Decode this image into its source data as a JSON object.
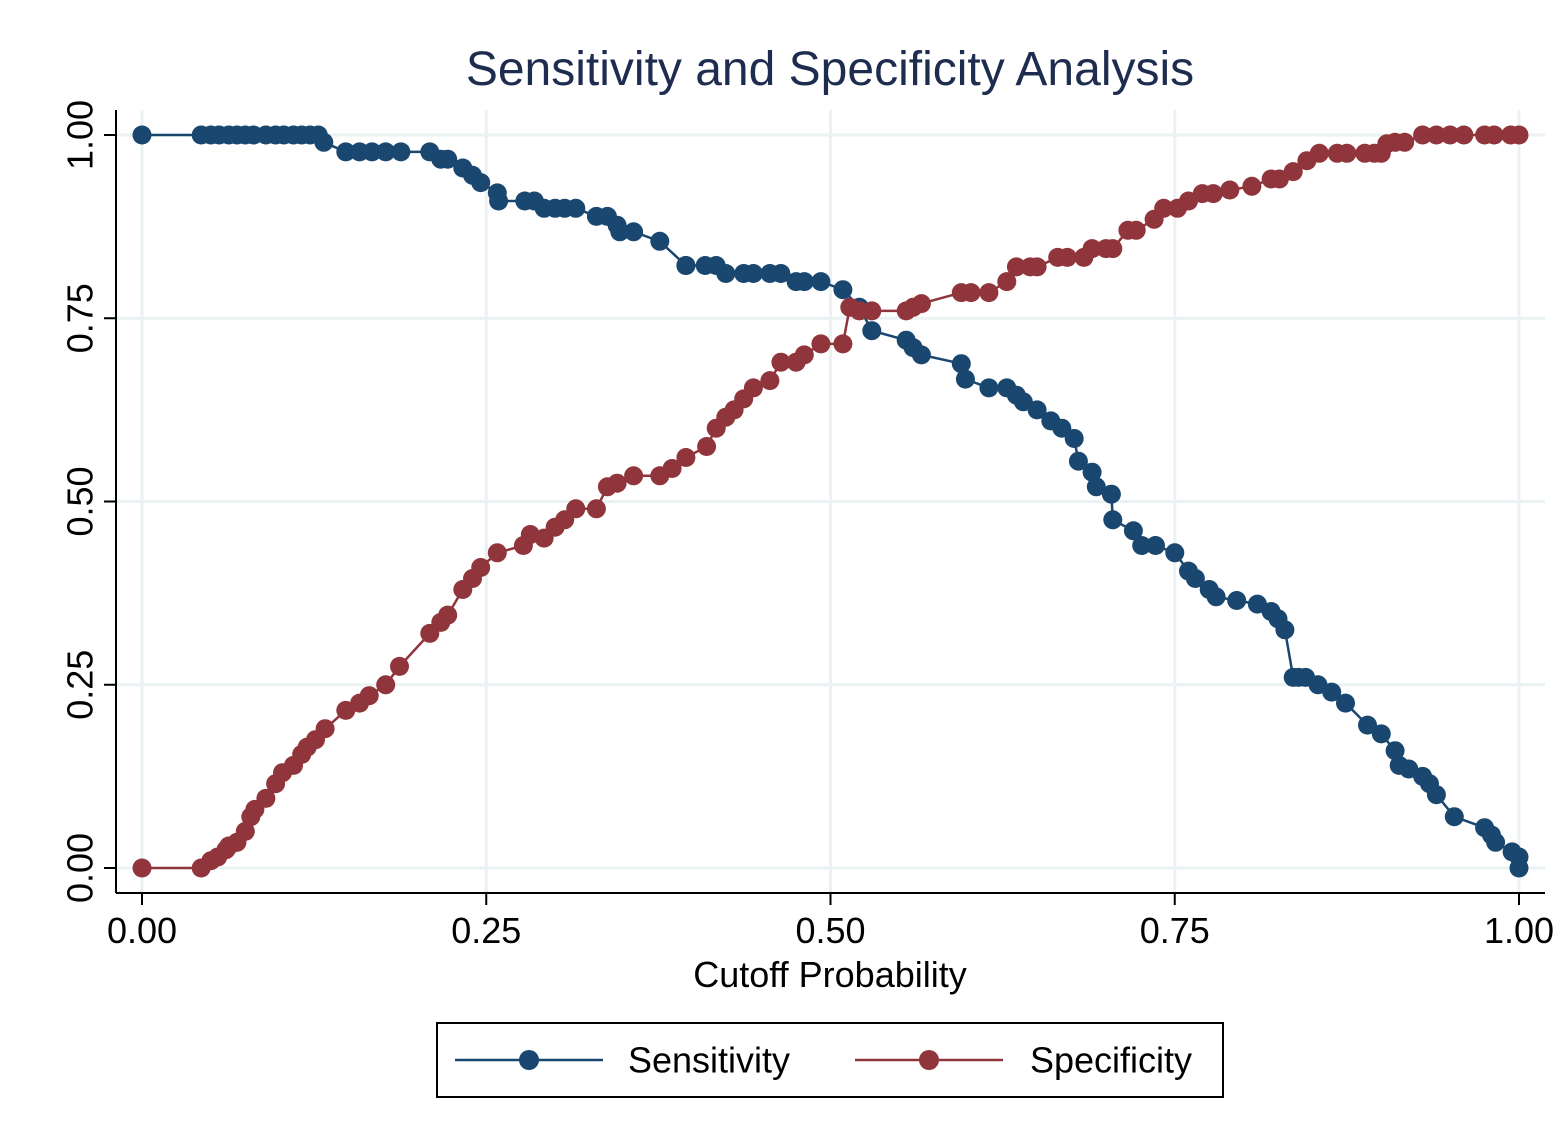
{
  "chart_data": {
    "type": "line",
    "title": "Sensitivity and Specificity Analysis",
    "xlabel": "Cutoff Probability",
    "ylabel": "",
    "xlim": [
      0,
      1
    ],
    "ylim": [
      0,
      1
    ],
    "xticks": [
      "0.00",
      "0.25",
      "0.50",
      "0.75",
      "1.00"
    ],
    "yticks": [
      "0.00",
      "0.25",
      "0.50",
      "0.75",
      "1.00"
    ],
    "grid": true,
    "legend": "bottom",
    "series": [
      {
        "name": "Sensitivity",
        "color": "#1a476f",
        "points": [
          [
            0.0,
            1.0
          ],
          [
            0.043,
            1.0
          ],
          [
            0.05,
            1.0
          ],
          [
            0.056,
            1.0
          ],
          [
            0.063,
            1.0
          ],
          [
            0.069,
            1.0
          ],
          [
            0.075,
            1.0
          ],
          [
            0.081,
            1.0
          ],
          [
            0.09,
            1.0
          ],
          [
            0.097,
            1.0
          ],
          [
            0.103,
            1.0
          ],
          [
            0.11,
            1.0
          ],
          [
            0.116,
            1.0
          ],
          [
            0.122,
            1.0
          ],
          [
            0.128,
            1.0
          ],
          [
            0.132,
            0.99
          ],
          [
            0.148,
            0.977
          ],
          [
            0.158,
            0.977
          ],
          [
            0.167,
            0.977
          ],
          [
            0.177,
            0.977
          ],
          [
            0.188,
            0.977
          ],
          [
            0.209,
            0.977
          ],
          [
            0.217,
            0.967
          ],
          [
            0.222,
            0.967
          ],
          [
            0.233,
            0.955
          ],
          [
            0.24,
            0.945
          ],
          [
            0.246,
            0.935
          ],
          [
            0.258,
            0.921
          ],
          [
            0.259,
            0.91
          ],
          [
            0.278,
            0.91
          ],
          [
            0.285,
            0.91
          ],
          [
            0.292,
            0.9
          ],
          [
            0.3,
            0.9
          ],
          [
            0.307,
            0.9
          ],
          [
            0.315,
            0.9
          ],
          [
            0.33,
            0.889
          ],
          [
            0.338,
            0.889
          ],
          [
            0.345,
            0.877
          ],
          [
            0.347,
            0.868
          ],
          [
            0.357,
            0.868
          ],
          [
            0.376,
            0.855
          ],
          [
            0.395,
            0.822
          ],
          [
            0.395,
            0.822
          ],
          [
            0.409,
            0.822
          ],
          [
            0.417,
            0.822
          ],
          [
            0.424,
            0.811
          ],
          [
            0.437,
            0.811
          ],
          [
            0.444,
            0.811
          ],
          [
            0.456,
            0.811
          ],
          [
            0.464,
            0.811
          ],
          [
            0.475,
            0.8
          ],
          [
            0.481,
            0.8
          ],
          [
            0.493,
            0.8
          ],
          [
            0.509,
            0.789
          ],
          [
            0.521,
            0.765
          ],
          [
            0.53,
            0.733
          ],
          [
            0.555,
            0.72
          ],
          [
            0.56,
            0.71
          ],
          [
            0.566,
            0.7
          ],
          [
            0.595,
            0.688
          ],
          [
            0.598,
            0.667
          ],
          [
            0.615,
            0.655
          ],
          [
            0.628,
            0.655
          ],
          [
            0.635,
            0.645
          ],
          [
            0.64,
            0.636
          ],
          [
            0.65,
            0.625
          ],
          [
            0.66,
            0.61
          ],
          [
            0.668,
            0.6
          ],
          [
            0.677,
            0.586
          ],
          [
            0.68,
            0.555
          ],
          [
            0.69,
            0.54
          ],
          [
            0.693,
            0.52
          ],
          [
            0.704,
            0.51
          ],
          [
            0.705,
            0.475
          ],
          [
            0.72,
            0.46
          ],
          [
            0.726,
            0.44
          ],
          [
            0.736,
            0.44
          ],
          [
            0.75,
            0.43
          ],
          [
            0.76,
            0.405
          ],
          [
            0.765,
            0.395
          ],
          [
            0.775,
            0.38
          ],
          [
            0.78,
            0.37
          ],
          [
            0.795,
            0.365
          ],
          [
            0.81,
            0.36
          ],
          [
            0.82,
            0.35
          ],
          [
            0.825,
            0.34
          ],
          [
            0.83,
            0.325
          ],
          [
            0.836,
            0.26
          ],
          [
            0.84,
            0.26
          ],
          [
            0.845,
            0.26
          ],
          [
            0.854,
            0.25
          ],
          [
            0.864,
            0.24
          ],
          [
            0.874,
            0.225
          ],
          [
            0.89,
            0.195
          ],
          [
            0.9,
            0.183
          ],
          [
            0.91,
            0.16
          ],
          [
            0.913,
            0.14
          ],
          [
            0.92,
            0.135
          ],
          [
            0.93,
            0.125
          ],
          [
            0.935,
            0.115
          ],
          [
            0.94,
            0.1
          ],
          [
            0.953,
            0.07
          ],
          [
            0.975,
            0.055
          ],
          [
            0.98,
            0.045
          ],
          [
            0.983,
            0.035
          ],
          [
            0.995,
            0.022
          ],
          [
            1.0,
            0.015
          ],
          [
            1.0,
            0.0
          ]
        ]
      },
      {
        "name": "Specificity",
        "color": "#90353b",
        "points": [
          [
            0.0,
            0.0
          ],
          [
            0.043,
            0.0
          ],
          [
            0.05,
            0.01
          ],
          [
            0.055,
            0.015
          ],
          [
            0.061,
            0.025
          ],
          [
            0.063,
            0.03
          ],
          [
            0.069,
            0.035
          ],
          [
            0.075,
            0.05
          ],
          [
            0.079,
            0.07
          ],
          [
            0.082,
            0.08
          ],
          [
            0.09,
            0.095
          ],
          [
            0.097,
            0.115
          ],
          [
            0.102,
            0.13
          ],
          [
            0.11,
            0.14
          ],
          [
            0.116,
            0.155
          ],
          [
            0.12,
            0.165
          ],
          [
            0.126,
            0.175
          ],
          [
            0.133,
            0.19
          ],
          [
            0.148,
            0.215
          ],
          [
            0.158,
            0.225
          ],
          [
            0.165,
            0.235
          ],
          [
            0.177,
            0.25
          ],
          [
            0.187,
            0.275
          ],
          [
            0.209,
            0.32
          ],
          [
            0.217,
            0.335
          ],
          [
            0.222,
            0.345
          ],
          [
            0.233,
            0.38
          ],
          [
            0.24,
            0.395
          ],
          [
            0.246,
            0.41
          ],
          [
            0.258,
            0.43
          ],
          [
            0.277,
            0.44
          ],
          [
            0.282,
            0.455
          ],
          [
            0.292,
            0.45
          ],
          [
            0.3,
            0.465
          ],
          [
            0.307,
            0.475
          ],
          [
            0.315,
            0.49
          ],
          [
            0.33,
            0.49
          ],
          [
            0.338,
            0.52
          ],
          [
            0.345,
            0.525
          ],
          [
            0.357,
            0.535
          ],
          [
            0.376,
            0.535
          ],
          [
            0.385,
            0.545
          ],
          [
            0.395,
            0.56
          ],
          [
            0.41,
            0.575
          ],
          [
            0.417,
            0.6
          ],
          [
            0.424,
            0.615
          ],
          [
            0.43,
            0.625
          ],
          [
            0.437,
            0.64
          ],
          [
            0.444,
            0.655
          ],
          [
            0.456,
            0.665
          ],
          [
            0.464,
            0.69
          ],
          [
            0.475,
            0.69
          ],
          [
            0.481,
            0.7
          ],
          [
            0.493,
            0.715
          ],
          [
            0.509,
            0.715
          ],
          [
            0.514,
            0.765
          ],
          [
            0.521,
            0.76
          ],
          [
            0.53,
            0.76
          ],
          [
            0.555,
            0.76
          ],
          [
            0.56,
            0.765
          ],
          [
            0.566,
            0.77
          ],
          [
            0.595,
            0.785
          ],
          [
            0.602,
            0.785
          ],
          [
            0.615,
            0.785
          ],
          [
            0.628,
            0.8
          ],
          [
            0.635,
            0.82
          ],
          [
            0.645,
            0.82
          ],
          [
            0.65,
            0.82
          ],
          [
            0.665,
            0.833
          ],
          [
            0.672,
            0.833
          ],
          [
            0.684,
            0.833
          ],
          [
            0.69,
            0.845
          ],
          [
            0.7,
            0.845
          ],
          [
            0.705,
            0.845
          ],
          [
            0.716,
            0.87
          ],
          [
            0.722,
            0.87
          ],
          [
            0.735,
            0.885
          ],
          [
            0.742,
            0.9
          ],
          [
            0.752,
            0.9
          ],
          [
            0.76,
            0.91
          ],
          [
            0.77,
            0.92
          ],
          [
            0.778,
            0.92
          ],
          [
            0.79,
            0.925
          ],
          [
            0.806,
            0.93
          ],
          [
            0.82,
            0.94
          ],
          [
            0.826,
            0.94
          ],
          [
            0.836,
            0.95
          ],
          [
            0.846,
            0.965
          ],
          [
            0.855,
            0.975
          ],
          [
            0.868,
            0.975
          ],
          [
            0.875,
            0.975
          ],
          [
            0.888,
            0.975
          ],
          [
            0.895,
            0.975
          ],
          [
            0.9,
            0.975
          ],
          [
            0.904,
            0.988
          ],
          [
            0.91,
            0.99
          ],
          [
            0.917,
            0.99
          ],
          [
            0.93,
            1.0
          ],
          [
            0.94,
            1.0
          ],
          [
            0.95,
            1.0
          ],
          [
            0.96,
            1.0
          ],
          [
            0.975,
            1.0
          ],
          [
            0.982,
            1.0
          ],
          [
            0.994,
            1.0
          ],
          [
            1.0,
            1.0
          ]
        ]
      }
    ]
  }
}
